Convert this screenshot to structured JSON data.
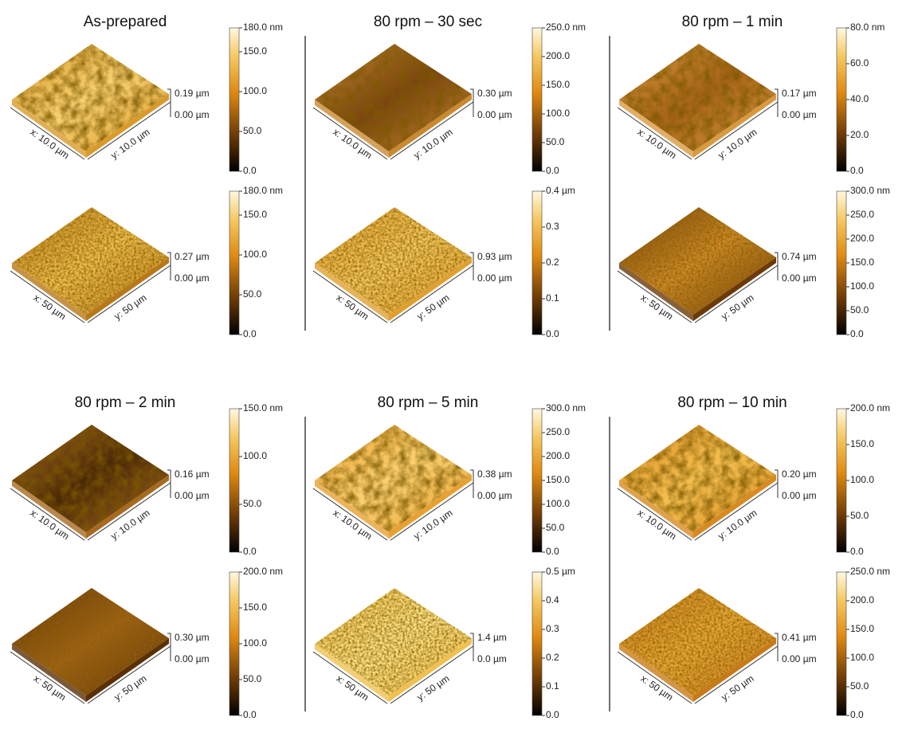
{
  "panels": [
    {
      "title": "As-prepared",
      "plots": [
        {
          "x_label": "x: 10.0 µm",
          "y_label": "y: 10.0 µm",
          "z_top": "0.19 µm",
          "z_bottom": "0.00 µm",
          "colorbar": [
            {
              "value": 180,
              "label": "180.0 nm"
            },
            {
              "value": 150,
              "label": "150.0"
            },
            {
              "value": 100,
              "label": "100.0"
            },
            {
              "value": 50,
              "label": "50.0"
            },
            {
              "value": 0,
              "label": "0.0"
            }
          ]
        },
        {
          "x_label": "x: 50 µm",
          "y_label": "y: 50 µm",
          "z_top": "0.27 µm",
          "z_bottom": "0.00 µm",
          "colorbar": [
            {
              "value": 180,
              "label": "180.0 nm"
            },
            {
              "value": 150,
              "label": "150.0"
            },
            {
              "value": 100,
              "label": "100.0"
            },
            {
              "value": 50,
              "label": "50.0"
            },
            {
              "value": 0,
              "label": "0.0"
            }
          ]
        }
      ]
    },
    {
      "title": "80 rpm – 30 sec",
      "plots": [
        {
          "x_label": "x: 10.0 µm",
          "y_label": "y: 10.0 µm",
          "z_top": "0.30 µm",
          "z_bottom": "0.00 µm",
          "colorbar": [
            {
              "value": 250,
              "label": "250.0 nm"
            },
            {
              "value": 200,
              "label": "200.0"
            },
            {
              "value": 150,
              "label": "150.0"
            },
            {
              "value": 100,
              "label": "100.0"
            },
            {
              "value": 50,
              "label": "50.0"
            },
            {
              "value": 0,
              "label": "0.0"
            }
          ]
        },
        {
          "x_label": "x: 50 µm",
          "y_label": "y: 50 µm",
          "z_top": "0.93 µm",
          "z_bottom": "0.00 µm",
          "colorbar": [
            {
              "value": 0.4,
              "label": "0.4 µm"
            },
            {
              "value": 0.3,
              "label": "0.3"
            },
            {
              "value": 0.2,
              "label": "0.2"
            },
            {
              "value": 0.1,
              "label": "0.1"
            },
            {
              "value": 0,
              "label": "0.0"
            }
          ]
        }
      ]
    },
    {
      "title": "80 rpm – 1 min",
      "plots": [
        {
          "x_label": "x: 10.0 µm",
          "y_label": "y: 10.0 µm",
          "z_top": "0.17 µm",
          "z_bottom": "0.00 µm",
          "colorbar": [
            {
              "value": 80,
              "label": "80.0 nm"
            },
            {
              "value": 60,
              "label": "60.0"
            },
            {
              "value": 40,
              "label": "40.0"
            },
            {
              "value": 20,
              "label": "20.0"
            },
            {
              "value": 0,
              "label": "0.0"
            }
          ]
        },
        {
          "x_label": "x: 50 µm",
          "y_label": "y: 50 µm",
          "z_top": "0.74 µm",
          "z_bottom": "0.00 µm",
          "colorbar": [
            {
              "value": 300,
              "label": "300.0 nm"
            },
            {
              "value": 250,
              "label": "250.0"
            },
            {
              "value": 200,
              "label": "200.0"
            },
            {
              "value": 150,
              "label": "150.0"
            },
            {
              "value": 100,
              "label": "100.0"
            },
            {
              "value": 50,
              "label": "50.0"
            },
            {
              "value": 0,
              "label": "0.0"
            }
          ]
        }
      ]
    },
    {
      "title": "80 rpm – 2 min",
      "plots": [
        {
          "x_label": "x: 10.0 µm",
          "y_label": "y: 10.0 µm",
          "z_top": "0.16 µm",
          "z_bottom": "0.00 µm",
          "colorbar": [
            {
              "value": 150,
              "label": "150.0 nm"
            },
            {
              "value": 100,
              "label": "100.0"
            },
            {
              "value": 50,
              "label": "50.0"
            },
            {
              "value": 0,
              "label": "0.0"
            }
          ]
        },
        {
          "x_label": "x: 50 µm",
          "y_label": "y: 50 µm",
          "z_top": "0.30 µm",
          "z_bottom": "0.00 µm",
          "colorbar": [
            {
              "value": 200,
              "label": "200.0 nm"
            },
            {
              "value": 150,
              "label": "150.0"
            },
            {
              "value": 100,
              "label": "100.0"
            },
            {
              "value": 50,
              "label": "50.0"
            },
            {
              "value": 0,
              "label": "0.0"
            }
          ]
        }
      ]
    },
    {
      "title": "80 rpm – 5 min",
      "plots": [
        {
          "x_label": "x: 10.0 µm",
          "y_label": "y: 10.0 µm",
          "z_top": "0.38 µm",
          "z_bottom": "0.00 µm",
          "colorbar": [
            {
              "value": 300,
              "label": "300.0 nm"
            },
            {
              "value": 250,
              "label": "250.0"
            },
            {
              "value": 200,
              "label": "200.0"
            },
            {
              "value": 150,
              "label": "150.0"
            },
            {
              "value": 100,
              "label": "100.0"
            },
            {
              "value": 50,
              "label": "50.0"
            },
            {
              "value": 0,
              "label": "0.0"
            }
          ]
        },
        {
          "x_label": "x: 50 µm",
          "y_label": "y: 50 µm",
          "z_top": "1.4 µm",
          "z_bottom": "0.0 µm",
          "colorbar": [
            {
              "value": 0.5,
              "label": "0.5 µm"
            },
            {
              "value": 0.4,
              "label": "0.4"
            },
            {
              "value": 0.3,
              "label": "0.3"
            },
            {
              "value": 0.2,
              "label": "0.2"
            },
            {
              "value": 0.1,
              "label": "0.1"
            },
            {
              "value": 0,
              "label": "0.0"
            }
          ]
        }
      ]
    },
    {
      "title": "80 rpm – 10 min",
      "plots": [
        {
          "x_label": "x: 10.0 µm",
          "y_label": "y: 10.0 µm",
          "z_top": "0.20 µm",
          "z_bottom": "0.00 µm",
          "colorbar": [
            {
              "value": 200,
              "label": "200.0 nm"
            },
            {
              "value": 150,
              "label": "150.0"
            },
            {
              "value": 100,
              "label": "100.0"
            },
            {
              "value": 50,
              "label": "50.0"
            },
            {
              "value": 0,
              "label": "0.0"
            }
          ]
        },
        {
          "x_label": "x: 50 µm",
          "y_label": "y: 50 µm",
          "z_top": "0.41 µm",
          "z_bottom": "0.00 µm",
          "colorbar": [
            {
              "value": 250,
              "label": "250.0 nm"
            },
            {
              "value": 200,
              "label": "200.0"
            },
            {
              "value": 150,
              "label": "150.0"
            },
            {
              "value": 100,
              "label": "100.0"
            },
            {
              "value": 50,
              "label": "50.0"
            },
            {
              "value": 0,
              "label": "0.0"
            }
          ]
        }
      ]
    }
  ]
}
